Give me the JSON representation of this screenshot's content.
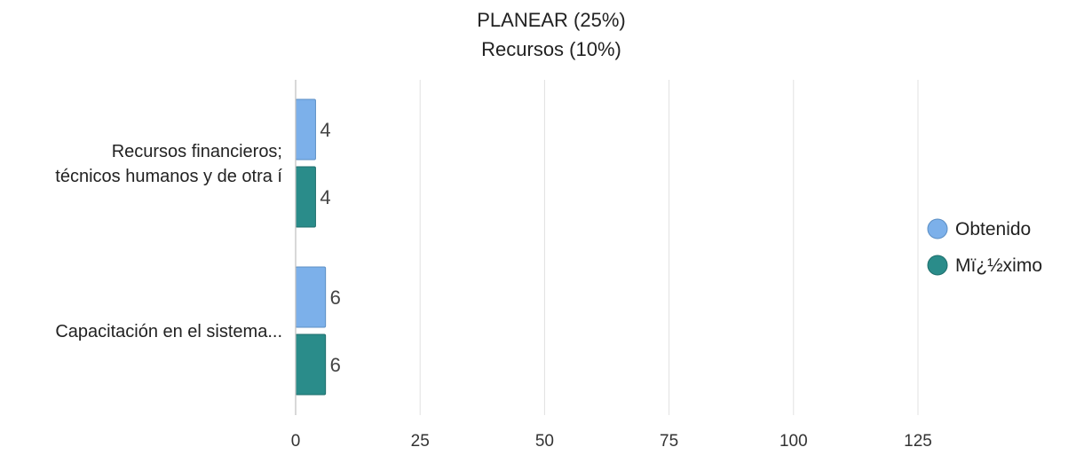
{
  "chart_data": {
    "type": "bar",
    "orientation": "horizontal",
    "title": [
      "PLANEAR (25%)",
      "Recursos (10%)"
    ],
    "categories": [
      [
        "Recursos financieros;",
        "técnicos humanos y de otra í"
      ],
      [
        "Capacitación en el sistema..."
      ]
    ],
    "series": [
      {
        "name": "Obtenido",
        "values": [
          4,
          6
        ],
        "color": "#7cb0ea"
      },
      {
        "name": "Mï¿½ximo",
        "values": [
          4,
          6
        ],
        "color": "#2a8c8a"
      }
    ],
    "xlim": [
      0,
      125
    ],
    "ticks": [
      0,
      25,
      50,
      75,
      100,
      125
    ],
    "tick_labels": [
      "0",
      "25",
      "50",
      "75",
      "100",
      "125"
    ],
    "grid": true,
    "legend_position": "right",
    "data_labels": true
  }
}
